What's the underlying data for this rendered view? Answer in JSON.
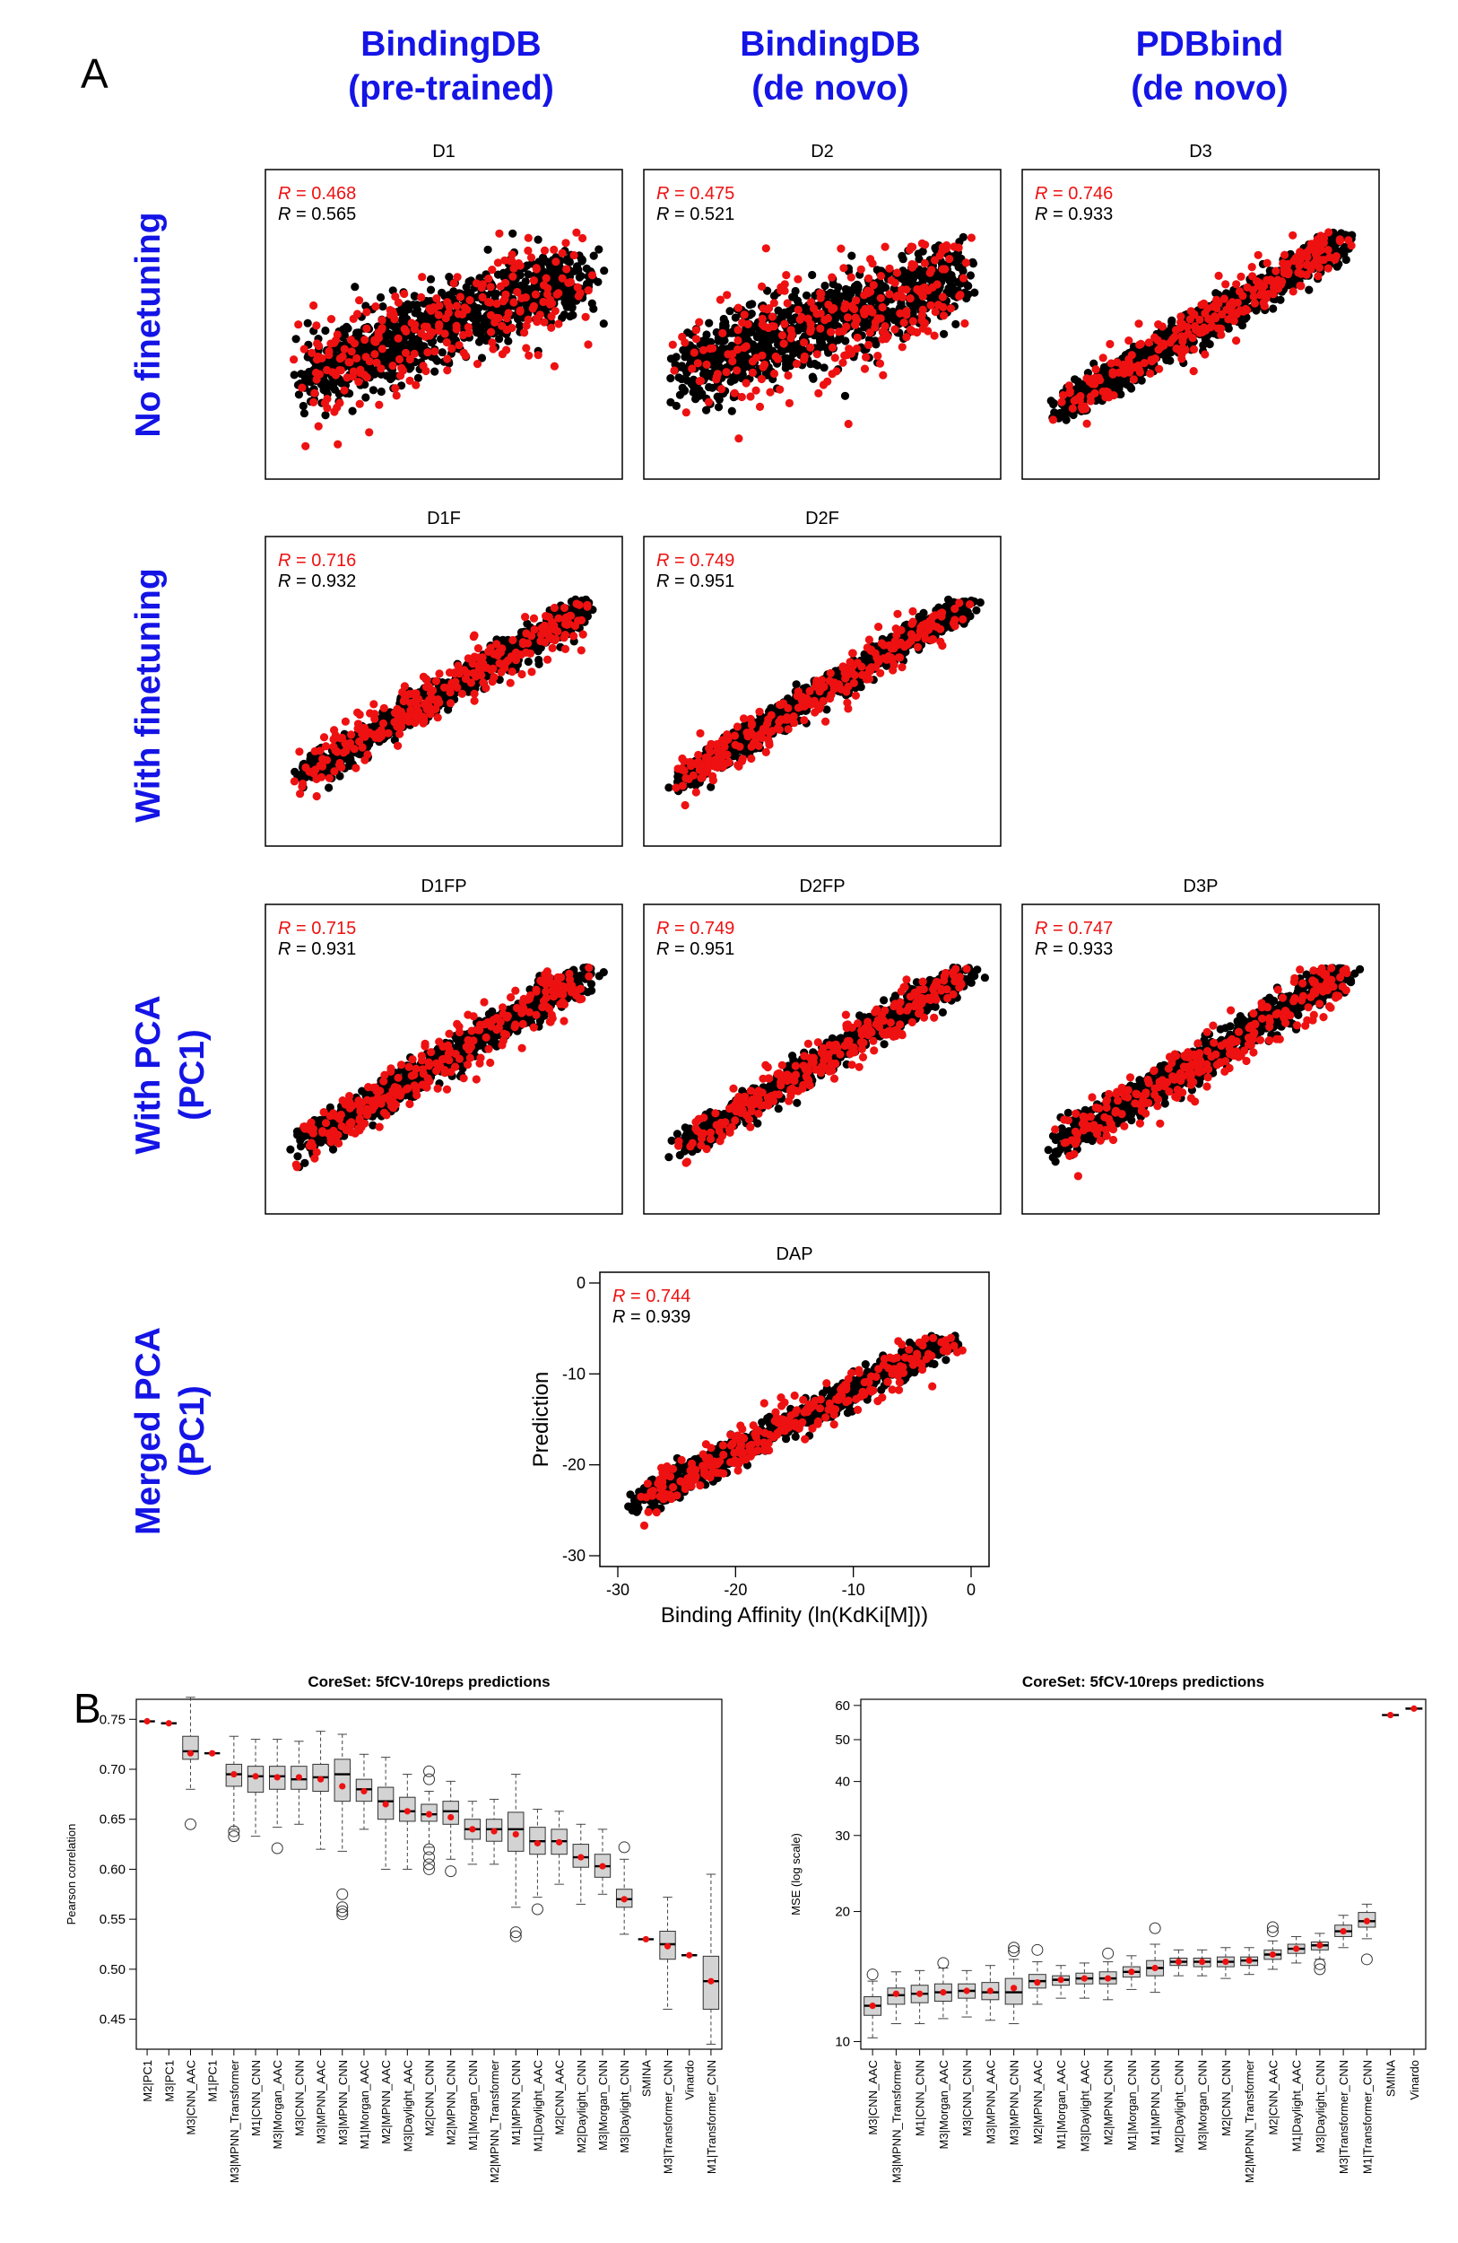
{
  "panel_a_label": "A",
  "panel_b_label": "B",
  "column_headers": [
    {
      "line1": "BindingDB",
      "line2": "(pre-trained)"
    },
    {
      "line1": "BindingDB",
      "line2": "(de novo)"
    },
    {
      "line1": "PDBbind",
      "line2": "(de novo)"
    }
  ],
  "row_headers": [
    {
      "line1": "No finetuning",
      "line2": ""
    },
    {
      "line1": "With finetuning",
      "line2": ""
    },
    {
      "line1": "With PCA",
      "line2": "(PC1)"
    },
    {
      "line1": "Merged PCA",
      "line2": "(PC1)"
    }
  ],
  "colors": {
    "accent": "#1414e6",
    "red": "#ee1111",
    "black": "#000000",
    "box_fill": "#d3d3d3"
  },
  "chart_data": [
    {
      "type": "scatter",
      "title": "D1",
      "r_red": "= 0.468",
      "r_black": "= 0.565",
      "r_symbol": "R",
      "slope": 0.565,
      "spread": 0.8
    },
    {
      "type": "scatter",
      "title": "D2",
      "r_red": "= 0.475",
      "r_black": "= 0.521",
      "r_symbol": "R",
      "slope": 0.521,
      "spread": 0.85
    },
    {
      "type": "scatter",
      "title": "D3",
      "r_red": "= 0.746",
      "r_black": "= 0.933",
      "r_symbol": "R",
      "slope": 0.933,
      "spread": 0.35
    },
    {
      "type": "scatter",
      "title": "D1F",
      "r_red": "= 0.716",
      "r_black": "= 0.932",
      "r_symbol": "R",
      "slope": 0.932,
      "spread": 0.35
    },
    {
      "type": "scatter",
      "title": "D2F",
      "r_red": "= 0.749",
      "r_black": "= 0.951",
      "r_symbol": "R",
      "slope": 0.951,
      "spread": 0.3
    },
    {
      "type": "scatter",
      "title": "D1FP",
      "r_red": "= 0.715",
      "r_black": "= 0.931",
      "r_symbol": "R",
      "slope": 0.931,
      "spread": 0.35
    },
    {
      "type": "scatter",
      "title": "D2FP",
      "r_red": "= 0.749",
      "r_black": "= 0.951",
      "r_symbol": "R",
      "slope": 0.951,
      "spread": 0.3
    },
    {
      "type": "scatter",
      "title": "D3P",
      "r_red": "= 0.747",
      "r_black": "= 0.933",
      "r_symbol": "R",
      "slope": 0.933,
      "spread": 0.35
    },
    {
      "type": "scatter",
      "title": "DAP",
      "r_red": "= 0.744",
      "r_black": "= 0.939",
      "r_symbol": "R",
      "slope": 0.939,
      "spread": 0.32,
      "xlabel": "Binding Affinity (ln(KdKi[M]))",
      "ylabel": "Prediction",
      "xlim": [
        -30,
        0
      ],
      "ylim": [
        -30,
        0
      ],
      "xticks": [
        "-30",
        "-20",
        "-10",
        "0"
      ],
      "yticks": [
        "-30",
        "-20",
        "-10",
        "0"
      ]
    },
    {
      "type": "box",
      "title": "CoreSet: 5fCV-10reps predictions",
      "ylabel": "Pearson correlation",
      "ylim": [
        0.42,
        0.77
      ],
      "yticks": [
        "0.45",
        "0.50",
        "0.55",
        "0.60",
        "0.65",
        "0.70",
        "0.75"
      ],
      "categories": [
        "M2|PC1",
        "M3|PC1",
        "M3|CNN_AAC",
        "M1|PC1",
        "M3|MPNN_Transformer",
        "M1|CNN_CNN",
        "M3|Morgan_AAC",
        "M3|CNN_CNN",
        "M3|MPNN_AAC",
        "M3|MPNN_CNN",
        "M1|Morgan_AAC",
        "M2|MPNN_AAC",
        "M3|Daylight_AAC",
        "M2|CNN_CNN",
        "M2|MPNN_CNN",
        "M1|Morgan_CNN",
        "M2|MPNN_Transformer",
        "M1|MPNN_CNN",
        "M1|Daylight_AAC",
        "M2|CNN_AAC",
        "M2|Daylight_CNN",
        "M3|Morgan_CNN",
        "M3|Daylight_CNN",
        "SMINA",
        "M3|Transformer_CNN",
        "Vinardo",
        "M1|Transformer_CNN"
      ],
      "boxes": [
        {
          "min": 0.748,
          "q1": 0.748,
          "median": 0.748,
          "q3": 0.748,
          "max": 0.748,
          "mean": 0.748,
          "outliers": []
        },
        {
          "min": 0.746,
          "q1": 0.746,
          "median": 0.746,
          "q3": 0.746,
          "max": 0.746,
          "mean": 0.746,
          "outliers": []
        },
        {
          "min": 0.68,
          "q1": 0.71,
          "median": 0.718,
          "q3": 0.733,
          "max": 0.772,
          "mean": 0.716,
          "outliers": [
            0.645
          ]
        },
        {
          "min": 0.716,
          "q1": 0.716,
          "median": 0.716,
          "q3": 0.716,
          "max": 0.716,
          "mean": 0.716,
          "outliers": []
        },
        {
          "min": 0.64,
          "q1": 0.683,
          "median": 0.695,
          "q3": 0.705,
          "max": 0.733,
          "mean": 0.695,
          "outliers": [
            0.633,
            0.638
          ]
        },
        {
          "min": 0.633,
          "q1": 0.677,
          "median": 0.693,
          "q3": 0.703,
          "max": 0.73,
          "mean": 0.693,
          "outliers": []
        },
        {
          "min": 0.642,
          "q1": 0.68,
          "median": 0.693,
          "q3": 0.703,
          "max": 0.73,
          "mean": 0.692,
          "outliers": [
            0.621
          ]
        },
        {
          "min": 0.645,
          "q1": 0.68,
          "median": 0.69,
          "q3": 0.703,
          "max": 0.728,
          "mean": 0.692,
          "outliers": []
        },
        {
          "min": 0.62,
          "q1": 0.678,
          "median": 0.692,
          "q3": 0.705,
          "max": 0.738,
          "mean": 0.69,
          "outliers": []
        },
        {
          "min": 0.618,
          "q1": 0.668,
          "median": 0.695,
          "q3": 0.71,
          "max": 0.735,
          "mean": 0.683,
          "outliers": [
            0.555,
            0.558,
            0.562,
            0.575
          ]
        },
        {
          "min": 0.64,
          "q1": 0.668,
          "median": 0.68,
          "q3": 0.69,
          "max": 0.715,
          "mean": 0.678,
          "outliers": []
        },
        {
          "min": 0.6,
          "q1": 0.65,
          "median": 0.668,
          "q3": 0.682,
          "max": 0.712,
          "mean": 0.665,
          "outliers": []
        },
        {
          "min": 0.6,
          "q1": 0.648,
          "median": 0.658,
          "q3": 0.672,
          "max": 0.695,
          "mean": 0.658,
          "outliers": []
        },
        {
          "min": 0.622,
          "q1": 0.648,
          "median": 0.655,
          "q3": 0.665,
          "max": 0.678,
          "mean": 0.655,
          "outliers": [
            0.6,
            0.605,
            0.612,
            0.62,
            0.69,
            0.698
          ]
        },
        {
          "min": 0.61,
          "q1": 0.645,
          "median": 0.658,
          "q3": 0.668,
          "max": 0.688,
          "mean": 0.652,
          "outliers": [
            0.598
          ]
        },
        {
          "min": 0.605,
          "q1": 0.63,
          "median": 0.64,
          "q3": 0.65,
          "max": 0.668,
          "mean": 0.64,
          "outliers": []
        },
        {
          "min": 0.605,
          "q1": 0.628,
          "median": 0.64,
          "q3": 0.65,
          "max": 0.67,
          "mean": 0.638,
          "outliers": []
        },
        {
          "min": 0.562,
          "q1": 0.618,
          "median": 0.64,
          "q3": 0.657,
          "max": 0.695,
          "mean": 0.635,
          "outliers": [
            0.533,
            0.537
          ]
        },
        {
          "min": 0.572,
          "q1": 0.615,
          "median": 0.628,
          "q3": 0.642,
          "max": 0.66,
          "mean": 0.626,
          "outliers": [
            0.56
          ]
        },
        {
          "min": 0.585,
          "q1": 0.615,
          "median": 0.628,
          "q3": 0.64,
          "max": 0.658,
          "mean": 0.627,
          "outliers": []
        },
        {
          "min": 0.565,
          "q1": 0.602,
          "median": 0.612,
          "q3": 0.625,
          "max": 0.645,
          "mean": 0.612,
          "outliers": []
        },
        {
          "min": 0.575,
          "q1": 0.592,
          "median": 0.603,
          "q3": 0.615,
          "max": 0.64,
          "mean": 0.603,
          "outliers": []
        },
        {
          "min": 0.535,
          "q1": 0.562,
          "median": 0.57,
          "q3": 0.58,
          "max": 0.61,
          "mean": 0.57,
          "outliers": [
            0.622
          ]
        },
        {
          "min": 0.53,
          "q1": 0.53,
          "median": 0.53,
          "q3": 0.53,
          "max": 0.53,
          "mean": 0.53,
          "outliers": []
        },
        {
          "min": 0.46,
          "q1": 0.51,
          "median": 0.525,
          "q3": 0.538,
          "max": 0.572,
          "mean": 0.523,
          "outliers": []
        },
        {
          "min": 0.514,
          "q1": 0.514,
          "median": 0.514,
          "q3": 0.514,
          "max": 0.514,
          "mean": 0.514,
          "outliers": []
        },
        {
          "min": 0.425,
          "q1": 0.46,
          "median": 0.488,
          "q3": 0.513,
          "max": 0.595,
          "mean": 0.488,
          "outliers": []
        }
      ]
    },
    {
      "type": "box",
      "title": "CoreSet: 5fCV-10reps predictions",
      "ylabel": "MSE (log scale)",
      "log_y": true,
      "ylim": [
        9.6,
        62
      ],
      "yticks": [
        {
          "label": "10",
          "value": 10
        },
        {
          "label": "20",
          "value": 20
        },
        {
          "label": "30",
          "value": 30
        },
        {
          "label": "40",
          "value": 40
        },
        {
          "label": "50",
          "value": 50
        },
        {
          "label": "60",
          "value": 60
        }
      ],
      "categories": [
        "M3|CNN_AAC",
        "M3|MPNN_Transformer",
        "M1|CNN_CNN",
        "M3|Morgan_AAC",
        "M3|CNN_CNN",
        "M3|MPNN_AAC",
        "M3|MPNN_CNN",
        "M2|MPNN_AAC",
        "M1|Morgan_AAC",
        "M3|Daylight_AAC",
        "M2|MPNN_CNN",
        "M1|Morgan_CNN",
        "M1|MPNN_CNN",
        "M2|Daylight_CNN",
        "M3|Morgan_CNN",
        "M2|CNN_CNN",
        "M2|MPNN_Transformer",
        "M2|CNN_AAC",
        "M1|Daylight_AAC",
        "M3|Daylight_CNN",
        "M3|Transformer_CNN",
        "M1|Transformer_CNN",
        "SMINA",
        "Vinardo"
      ],
      "boxes": [
        {
          "min": 10.2,
          "q1": 11.5,
          "median": 12.1,
          "q3": 12.7,
          "max": 13.8,
          "mean": 12.1,
          "outliers": [
            14.3
          ]
        },
        {
          "min": 11.0,
          "q1": 12.2,
          "median": 12.8,
          "q3": 13.3,
          "max": 14.5,
          "mean": 12.9,
          "outliers": []
        },
        {
          "min": 11.0,
          "q1": 12.3,
          "median": 12.9,
          "q3": 13.5,
          "max": 14.6,
          "mean": 12.9,
          "outliers": []
        },
        {
          "min": 11.3,
          "q1": 12.4,
          "median": 13.0,
          "q3": 13.6,
          "max": 14.8,
          "mean": 13.0,
          "outliers": [
            15.2
          ]
        },
        {
          "min": 11.4,
          "q1": 12.6,
          "median": 13.1,
          "q3": 13.6,
          "max": 14.6,
          "mean": 13.1,
          "outliers": []
        },
        {
          "min": 11.2,
          "q1": 12.5,
          "median": 13.0,
          "q3": 13.7,
          "max": 15.0,
          "mean": 13.1,
          "outliers": []
        },
        {
          "min": 11.0,
          "q1": 12.2,
          "median": 13.0,
          "q3": 14.0,
          "max": 15.5,
          "mean": 13.3,
          "outliers": [
            16.2,
            16.5
          ]
        },
        {
          "min": 12.2,
          "q1": 13.3,
          "median": 13.8,
          "q3": 14.3,
          "max": 15.3,
          "mean": 13.7,
          "outliers": [
            16.3
          ]
        },
        {
          "min": 12.6,
          "q1": 13.5,
          "median": 13.9,
          "q3": 14.2,
          "max": 15.0,
          "mean": 13.9,
          "outliers": []
        },
        {
          "min": 12.6,
          "q1": 13.6,
          "median": 14.0,
          "q3": 14.4,
          "max": 15.2,
          "mean": 14.0,
          "outliers": []
        },
        {
          "min": 12.5,
          "q1": 13.6,
          "median": 14.0,
          "q3": 14.5,
          "max": 15.3,
          "mean": 14.0,
          "outliers": [
            16.0
          ]
        },
        {
          "min": 13.2,
          "q1": 14.1,
          "median": 14.5,
          "q3": 14.9,
          "max": 15.8,
          "mean": 14.5,
          "outliers": []
        },
        {
          "min": 13.0,
          "q1": 14.2,
          "median": 14.8,
          "q3": 15.4,
          "max": 16.8,
          "mean": 14.8,
          "outliers": [
            18.3
          ]
        },
        {
          "min": 14.2,
          "q1": 15.0,
          "median": 15.3,
          "q3": 15.6,
          "max": 16.3,
          "mean": 15.3,
          "outliers": []
        },
        {
          "min": 14.2,
          "q1": 14.9,
          "median": 15.3,
          "q3": 15.6,
          "max": 16.3,
          "mean": 15.3,
          "outliers": []
        },
        {
          "min": 14.0,
          "q1": 14.9,
          "median": 15.3,
          "q3": 15.7,
          "max": 16.5,
          "mean": 15.3,
          "outliers": []
        },
        {
          "min": 14.3,
          "q1": 15.0,
          "median": 15.4,
          "q3": 15.7,
          "max": 16.5,
          "mean": 15.4,
          "outliers": []
        },
        {
          "min": 14.7,
          "q1": 15.5,
          "median": 15.9,
          "q3": 16.3,
          "max": 17.1,
          "mean": 15.9,
          "outliers": [
            18.0,
            18.4
          ]
        },
        {
          "min": 15.2,
          "q1": 16.0,
          "median": 16.4,
          "q3": 16.8,
          "max": 17.5,
          "mean": 16.4,
          "outliers": []
        },
        {
          "min": 15.5,
          "q1": 16.3,
          "median": 16.7,
          "q3": 17.0,
          "max": 17.8,
          "mean": 16.7,
          "outliers": [
            14.7,
            15.1
          ]
        },
        {
          "min": 16.5,
          "q1": 17.5,
          "median": 18.0,
          "q3": 18.6,
          "max": 19.6,
          "mean": 18.0,
          "outliers": []
        },
        {
          "min": 17.3,
          "q1": 18.4,
          "median": 19.0,
          "q3": 19.9,
          "max": 20.8,
          "mean": 19.0,
          "outliers": [
            15.5
          ]
        },
        {
          "min": 57.0,
          "q1": 57.0,
          "median": 57.0,
          "q3": 57.0,
          "max": 57.0,
          "mean": 57.0,
          "outliers": []
        },
        {
          "min": 59.0,
          "q1": 59.0,
          "median": 59.0,
          "q3": 59.0,
          "max": 59.0,
          "mean": 59.0,
          "outliers": []
        }
      ]
    }
  ]
}
